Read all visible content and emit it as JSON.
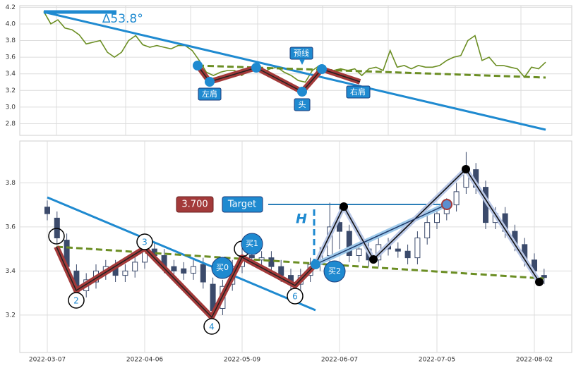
{
  "chart_data": [
    {
      "type": "line",
      "color": "#6b8e23",
      "grid": true,
      "values": [
        4.15,
        4.0,
        4.05,
        3.95,
        3.93,
        3.87,
        3.76,
        3.78,
        3.8,
        3.66,
        3.6,
        3.66,
        3.8,
        3.86,
        3.75,
        3.72,
        3.74,
        3.72,
        3.7,
        3.74,
        3.74,
        3.68,
        3.56,
        3.42,
        3.38,
        3.42,
        3.44,
        3.44,
        3.38,
        3.44,
        3.46,
        3.42,
        3.46,
        3.48,
        3.42,
        3.38,
        3.32,
        3.3,
        3.44,
        3.5,
        3.46,
        3.44,
        3.46,
        3.44,
        3.46,
        3.38,
        3.46,
        3.48,
        3.44,
        3.68,
        3.48,
        3.5,
        3.46,
        3.5,
        3.48,
        3.48,
        3.5,
        3.56,
        3.6,
        3.62,
        3.8,
        3.86,
        3.56,
        3.6,
        3.5,
        3.5,
        3.48,
        3.46,
        3.36,
        3.48,
        3.46,
        3.54
      ],
      "ylim": [
        2.66,
        4.22
      ],
      "yticks": [
        4.2,
        {
          "value": 4,
          "label": "4.0"
        },
        3.8,
        3.6,
        3.4,
        3.2,
        {
          "value": 3,
          "label": "3.0"
        },
        2.8
      ],
      "annotations": [
        "∆53.8°",
        "预线",
        "左肩",
        "头",
        "右肩"
      ]
    },
    {
      "type": "candlestick",
      "grid": true,
      "up_color": "#ffffff",
      "down_color": "#3b4a6b",
      "categories": [
        "2022-03-07",
        null,
        null,
        null,
        null,
        null,
        null,
        null,
        null,
        null,
        "2022-04-06",
        null,
        null,
        null,
        null,
        null,
        null,
        null,
        null,
        null,
        "2022-05-09",
        null,
        null,
        null,
        null,
        null,
        null,
        null,
        null,
        null,
        "2022-06-07",
        null,
        null,
        null,
        null,
        null,
        null,
        null,
        null,
        null,
        "2022-07-05",
        null,
        null,
        null,
        null,
        null,
        null,
        null,
        null,
        null,
        "2022-08-02",
        null
      ],
      "open": [
        3.69,
        3.64,
        3.54,
        3.4,
        3.31,
        3.35,
        3.39,
        3.42,
        3.38,
        3.4,
        3.44,
        3.5,
        3.47,
        3.42,
        3.41,
        3.39,
        3.43,
        3.34,
        3.23,
        3.34,
        3.42,
        3.47,
        3.45,
        3.46,
        3.42,
        3.38,
        3.34,
        3.38,
        3.43,
        3.47,
        3.62,
        3.58,
        3.47,
        3.5,
        3.45,
        3.52,
        3.5,
        3.49,
        3.46,
        3.55,
        3.62,
        3.66,
        3.7,
        3.78,
        3.86,
        3.78,
        3.62,
        3.66,
        3.58,
        3.52,
        3.45,
        3.38
      ],
      "high": [
        3.72,
        3.67,
        3.57,
        3.43,
        3.39,
        3.43,
        3.45,
        3.45,
        3.43,
        3.47,
        3.53,
        3.53,
        3.5,
        3.45,
        3.44,
        3.45,
        3.46,
        3.37,
        3.36,
        3.45,
        3.52,
        3.5,
        3.49,
        3.49,
        3.45,
        3.41,
        3.41,
        3.46,
        3.51,
        3.71,
        3.69,
        3.61,
        3.53,
        3.53,
        3.55,
        3.55,
        3.53,
        3.52,
        3.58,
        3.65,
        3.69,
        3.73,
        3.8,
        3.94,
        3.89,
        3.81,
        3.69,
        3.69,
        3.61,
        3.55,
        3.48,
        3.41
      ],
      "low": [
        3.63,
        3.52,
        3.39,
        3.27,
        3.28,
        3.32,
        3.36,
        3.35,
        3.35,
        3.37,
        3.41,
        3.44,
        3.39,
        3.37,
        3.36,
        3.36,
        3.32,
        3.19,
        3.2,
        3.31,
        3.39,
        3.43,
        3.42,
        3.39,
        3.35,
        3.31,
        3.31,
        3.35,
        3.4,
        3.44,
        3.5,
        3.44,
        3.44,
        3.42,
        3.42,
        3.47,
        3.46,
        3.43,
        3.43,
        3.52,
        3.59,
        3.63,
        3.67,
        3.75,
        3.75,
        3.59,
        3.59,
        3.55,
        3.49,
        3.42,
        3.37,
        3.34
      ],
      "close": [
        3.66,
        3.55,
        3.42,
        3.3,
        3.36,
        3.4,
        3.42,
        3.38,
        3.4,
        3.44,
        3.5,
        3.47,
        3.42,
        3.4,
        3.39,
        3.42,
        3.35,
        3.22,
        3.33,
        3.42,
        3.47,
        3.46,
        3.46,
        3.42,
        3.38,
        3.34,
        3.38,
        3.43,
        3.47,
        3.6,
        3.58,
        3.47,
        3.5,
        3.45,
        3.52,
        3.5,
        3.49,
        3.46,
        3.55,
        3.62,
        3.66,
        3.7,
        3.76,
        3.86,
        3.78,
        3.62,
        3.66,
        3.58,
        3.52,
        3.45,
        3.4,
        3.37
      ],
      "ylim": [
        3.03,
        3.99
      ],
      "yticks": [
        3.2,
        3.4,
        3.6,
        3.8
      ],
      "annotations": [
        "3.700",
        "Target",
        "H",
        "2",
        "3",
        "4",
        "6",
        "买0",
        "买1",
        "买2"
      ]
    }
  ]
}
